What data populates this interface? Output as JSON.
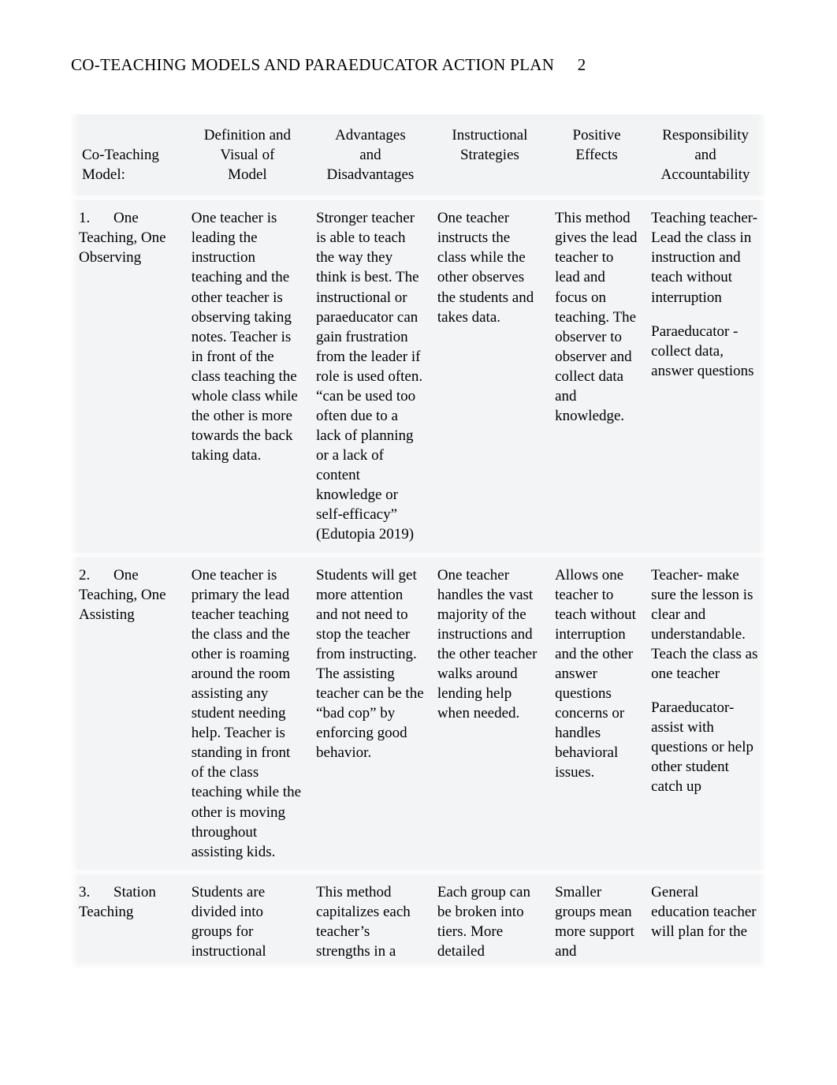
{
  "header": {
    "title": "CO-TEACHING MODELS AND PARAEDUCATOR ACTION PLAN",
    "page_number": "2"
  },
  "table": {
    "background_color": "#f2f3f4",
    "columns": {
      "model_l1": "Co-Teaching",
      "model_l2": "Model:",
      "def_l1": "Definition and",
      "def_l2": "Visual of",
      "def_l3": "Model",
      "adv_l1": "Advantages",
      "adv_l2": "and",
      "adv_l3": "Disadvantages",
      "inst_l1": "Instructional",
      "inst_l2": "Strategies",
      "pos_l1": "Positive",
      "pos_l2": "Effects",
      "resp_l1": "Responsibility",
      "resp_l2": "and",
      "resp_l3": "Accountability"
    },
    "rows": [
      {
        "num": "1.",
        "name": "One Teaching, One Observing",
        "definition": "One teacher is leading the instruction teaching and the other teacher is observing taking notes. Teacher is in front of the class teaching the whole class while the other is more towards the back taking data.",
        "advantages": "Stronger teacher is able to teach the way they think is best. The instructional or paraeducator can gain frustration from the leader if role is used often. “can be used too often due to a lack of planning or a lack of content knowledge or self-efficacy” (Edutopia 2019)",
        "instructional": "One teacher instructs the class while the other observes the students and takes data.",
        "positive": "This method gives the lead teacher to lead and focus on teaching. The observer to observer and collect data and knowledge.",
        "responsibility_a": "Teaching teacher- Lead the class in instruction and teach without interruption",
        "responsibility_b": "Paraeducator - collect data, answer questions"
      },
      {
        "num": "2.",
        "name": "One Teaching, One Assisting",
        "definition": "One teacher is primary the lead teacher teaching the class and the other is roaming around the room assisting any student needing help. Teacher is standing in front of the class teaching while the other is moving throughout assisting kids.",
        "advantages": "Students will get more attention and not need to stop the teacher from instructing. The assisting teacher can be the “bad cop” by enforcing good behavior.",
        "instructional": "One teacher handles the vast majority of the instructions and the other teacher walks around lending help when needed.",
        "positive": "Allows one teacher to teach without interruption and the other answer questions concerns or handles behavioral issues.",
        "responsibility_a": "Teacher- make sure the lesson is clear and understandable. Teach the class as one teacher",
        "responsibility_b": "Paraeducator- assist with questions or help other student catch up"
      },
      {
        "num": "3.",
        "name": "Station Teaching",
        "definition": "Students are divided into groups for instructional",
        "advantages": "This method capitalizes each teacher’s strengths in a",
        "instructional": "Each group can be broken into tiers. More detailed",
        "positive": "Smaller groups mean more support and",
        "responsibility_a": " General education teacher will plan for the",
        "responsibility_b": ""
      }
    ]
  }
}
